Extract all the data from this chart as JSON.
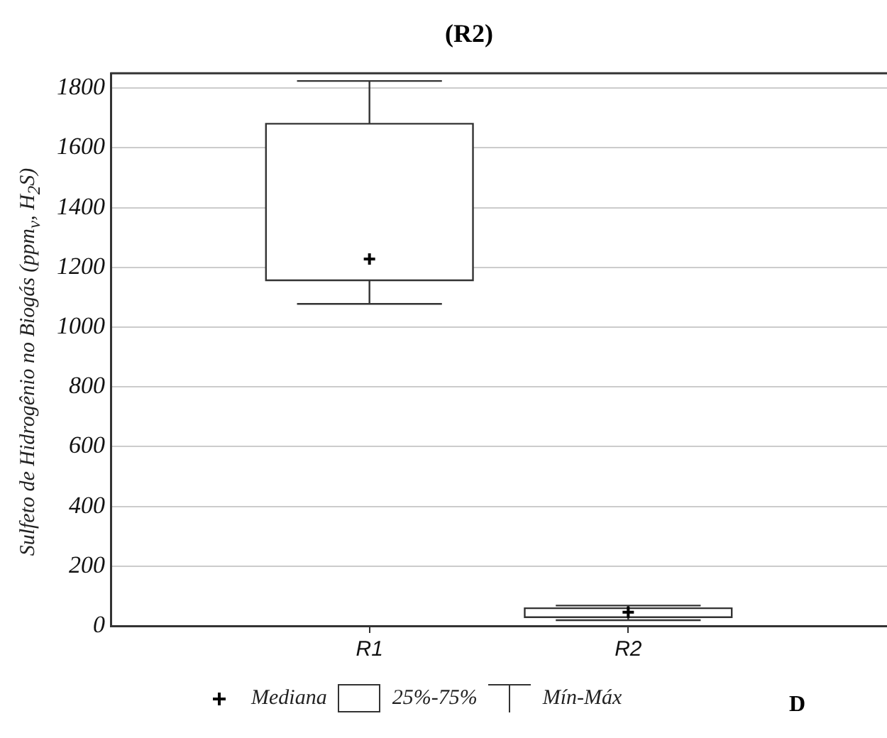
{
  "chart_data": {
    "type": "box",
    "title": "(R2)",
    "ylabel": "Sulfeto de Hidrogênio no Biogás (ppm$_{v}$, H$_{2}$S)",
    "categories": [
      "R1",
      "R2"
    ],
    "boxes": [
      {
        "low": 1078,
        "q1": 1157,
        "median": 1228,
        "q3": 1681,
        "high": 1824
      },
      {
        "low": 19,
        "q1": 29,
        "median": 46,
        "q3": 59,
        "high": 68
      }
    ],
    "ylim": [
      0,
      1850
    ],
    "yticks": [
      0,
      200,
      400,
      600,
      800,
      1000,
      1200,
      1400,
      1600,
      1800
    ],
    "grid": "y",
    "annotations": [
      "Mediana",
      "25%-75%",
      "Mín-Máx",
      "D"
    ]
  }
}
